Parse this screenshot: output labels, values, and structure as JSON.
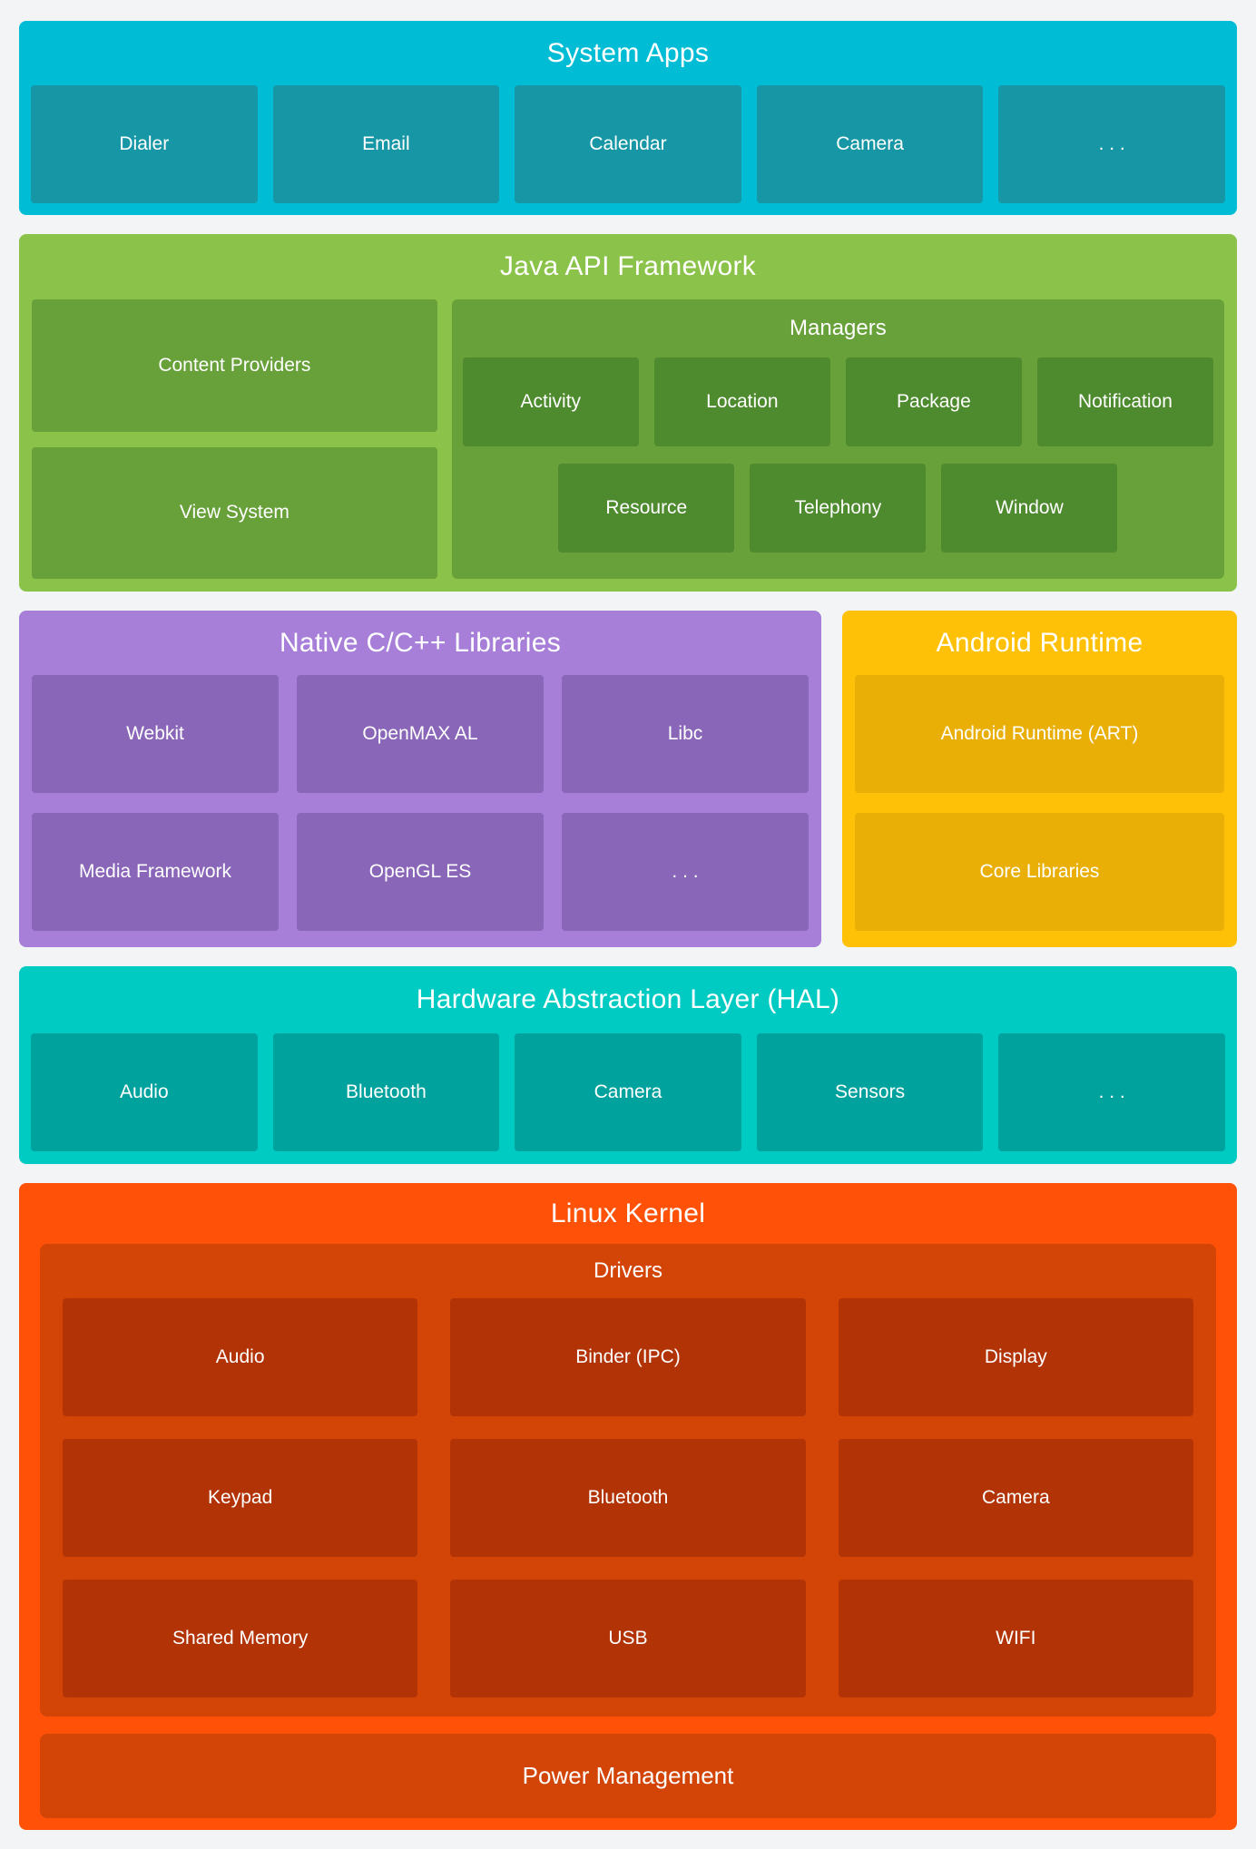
{
  "page": {
    "background": "#F3F4F5",
    "text_color": "#FFFFFF"
  },
  "layers": {
    "system_apps": {
      "title": "System Apps",
      "colors": {
        "bg": "#00BCD4",
        "box": "#1797A6"
      },
      "items": [
        "Dialer",
        "Email",
        "Calendar",
        "Camera",
        ". . ."
      ]
    },
    "java_api": {
      "title": "Java API Framework",
      "colors": {
        "bg": "#8BC34A",
        "mid": "#68A03A",
        "box": "#4E8A2E"
      },
      "left_items": [
        "Content Providers",
        "View System"
      ],
      "managers": {
        "title": "Managers",
        "row1": [
          "Activity",
          "Location",
          "Package",
          "Notification"
        ],
        "row2": [
          "Resource",
          "Telephony",
          "Window"
        ]
      }
    },
    "native_libs": {
      "title": "Native C/C++ Libraries",
      "colors": {
        "bg": "#A77FD9",
        "box": "#8A66B9"
      },
      "row1": [
        "Webkit",
        "OpenMAX AL",
        "Libc"
      ],
      "row2": [
        "Media Framework",
        "OpenGL ES",
        ". . ."
      ]
    },
    "android_runtime": {
      "title": "Android Runtime",
      "colors": {
        "bg": "#FFC107",
        "box": "#E9AF06"
      },
      "items": [
        "Android Runtime (ART)",
        "Core Libraries"
      ]
    },
    "hal": {
      "title": "Hardware Abstraction Layer (HAL)",
      "colors": {
        "bg": "#00CBC3",
        "box": "#00A29E"
      },
      "items": [
        "Audio",
        "Bluetooth",
        "Camera",
        "Sensors",
        ". . ."
      ]
    },
    "linux_kernel": {
      "title": "Linux Kernel",
      "colors": {
        "bg": "#FF5208",
        "mid": "#D34407",
        "box": "#B23406"
      },
      "drivers": {
        "title": "Drivers",
        "rows": [
          [
            "Audio",
            "Binder (IPC)",
            "Display"
          ],
          [
            "Keypad",
            "Bluetooth",
            "Camera"
          ],
          [
            "Shared Memory",
            "USB",
            "WIFI"
          ]
        ]
      },
      "power": "Power Management"
    }
  }
}
